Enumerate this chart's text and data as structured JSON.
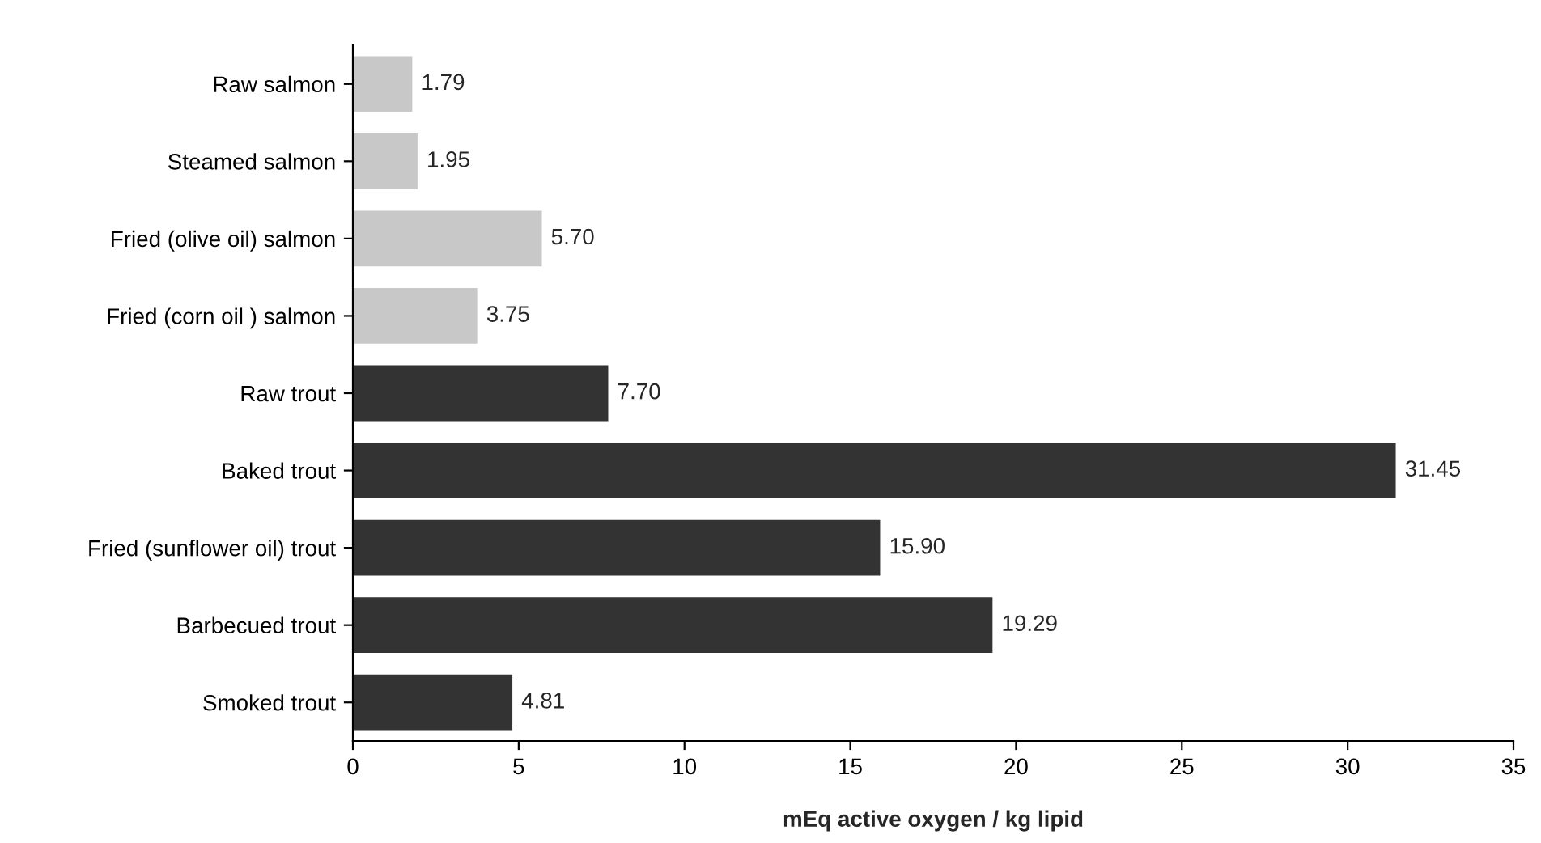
{
  "chart_data": {
    "type": "bar",
    "orientation": "horizontal",
    "xlabel": "mEq active oxygen / kg lipid",
    "categories": [
      "Raw salmon",
      "Steamed salmon",
      "Fried (olive oil) salmon",
      "Fried (corn oil ) salmon",
      "Raw trout",
      "Baked trout",
      "Fried (sunflower oil) trout",
      "Barbecued trout",
      "Smoked trout"
    ],
    "values": [
      1.79,
      1.95,
      5.7,
      3.75,
      7.7,
      31.45,
      15.9,
      19.29,
      4.81
    ],
    "value_labels": [
      "1.79",
      "1.95",
      "5.70",
      "3.75",
      "7.70",
      "31.45",
      "15.90",
      "19.29",
      "4.81"
    ],
    "colors": [
      "#c8c8c8",
      "#c8c8c8",
      "#c8c8c8",
      "#c8c8c8",
      "#333333",
      "#333333",
      "#333333",
      "#333333",
      "#333333"
    ],
    "xlim": [
      0,
      35
    ],
    "xticks": [
      0,
      5,
      10,
      15,
      20,
      25,
      30,
      35
    ],
    "grid": false,
    "legend": false
  }
}
